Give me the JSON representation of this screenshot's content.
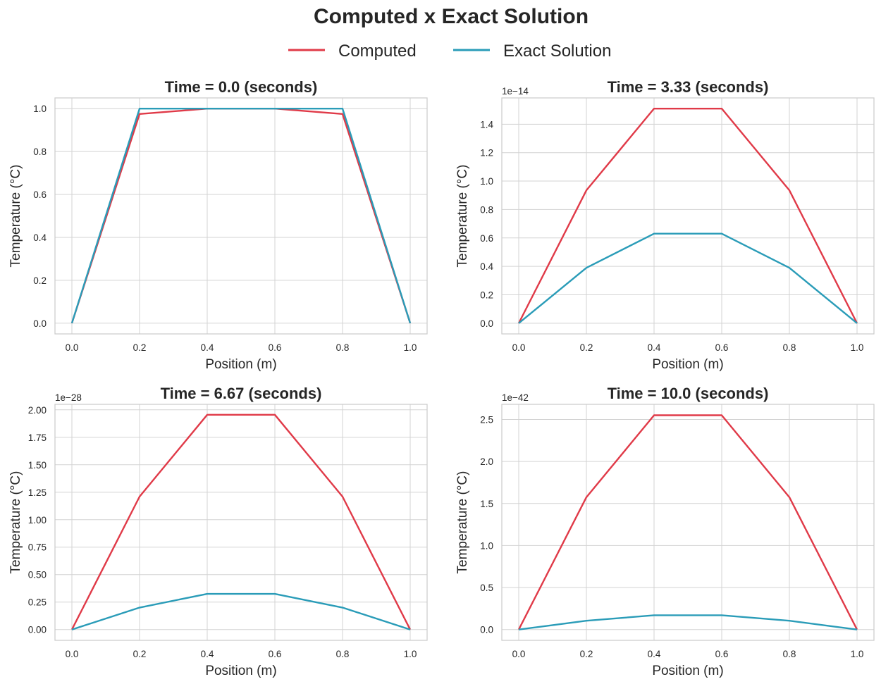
{
  "figure": {
    "title": "Computed x Exact Solution",
    "legend": [
      {
        "name": "Computed",
        "color": "#e03a48"
      },
      {
        "name": "Exact Solution",
        "color": "#2a9cb8"
      }
    ]
  },
  "chart_data": [
    {
      "type": "line",
      "title": "Time = 0.0 (seconds)",
      "xlabel": "Position (m)",
      "ylabel": "Temperature (°C)",
      "offset_text": "",
      "x": [
        0.0,
        0.2,
        0.4,
        0.6,
        0.8,
        1.0
      ],
      "xticks": [
        0.0,
        0.2,
        0.4,
        0.6,
        0.8,
        1.0
      ],
      "xtick_labels": [
        "0.0",
        "0.2",
        "0.4",
        "0.6",
        "0.8",
        "1.0"
      ],
      "xlim": [
        -0.05,
        1.05
      ],
      "yticks": [
        0.0,
        0.2,
        0.4,
        0.6,
        0.8,
        1.0
      ],
      "ytick_labels": [
        "0.0",
        "0.2",
        "0.4",
        "0.6",
        "0.8",
        "1.0"
      ],
      "ylim": [
        -0.05,
        1.05
      ],
      "grid": true,
      "series": [
        {
          "name": "Computed",
          "color": "#e03a48",
          "values": [
            0.0,
            0.975,
            1.0,
            1.0,
            0.975,
            0.0
          ]
        },
        {
          "name": "Exact Solution",
          "color": "#2a9cb8",
          "values": [
            0.0,
            1.0,
            1.0,
            1.0,
            1.0,
            0.0
          ]
        }
      ]
    },
    {
      "type": "line",
      "title": "Time = 3.33 (seconds)",
      "xlabel": "Position (m)",
      "ylabel": "Temperature (°C)",
      "offset_text": "1e−14",
      "x": [
        0.0,
        0.2,
        0.4,
        0.6,
        0.8,
        1.0
      ],
      "xticks": [
        0.0,
        0.2,
        0.4,
        0.6,
        0.8,
        1.0
      ],
      "xtick_labels": [
        "0.0",
        "0.2",
        "0.4",
        "0.6",
        "0.8",
        "1.0"
      ],
      "xlim": [
        -0.05,
        1.05
      ],
      "yticks": [
        0.0,
        0.2,
        0.4,
        0.6,
        0.8,
        1.0,
        1.2,
        1.4
      ],
      "ytick_labels": [
        "0.0",
        "0.2",
        "0.4",
        "0.6",
        "0.8",
        "1.0",
        "1.2",
        "1.4"
      ],
      "ylim": [
        -0.075,
        1.585
      ],
      "grid": true,
      "series": [
        {
          "name": "Computed",
          "color": "#e03a48",
          "values": [
            0.0,
            0.935,
            1.51,
            1.51,
            0.935,
            0.0
          ]
        },
        {
          "name": "Exact Solution",
          "color": "#2a9cb8",
          "values": [
            0.0,
            0.39,
            0.63,
            0.63,
            0.39,
            0.0
          ]
        }
      ]
    },
    {
      "type": "line",
      "title": "Time = 6.67 (seconds)",
      "xlabel": "Position (m)",
      "ylabel": "Temperature (°C)",
      "offset_text": "1e−28",
      "x": [
        0.0,
        0.2,
        0.4,
        0.6,
        0.8,
        1.0
      ],
      "xticks": [
        0.0,
        0.2,
        0.4,
        0.6,
        0.8,
        1.0
      ],
      "xtick_labels": [
        "0.0",
        "0.2",
        "0.4",
        "0.6",
        "0.8",
        "1.0"
      ],
      "xlim": [
        -0.05,
        1.05
      ],
      "yticks": [
        0.0,
        0.25,
        0.5,
        0.75,
        1.0,
        1.25,
        1.5,
        1.75,
        2.0
      ],
      "ytick_labels": [
        "0.00",
        "0.25",
        "0.50",
        "0.75",
        "1.00",
        "1.25",
        "1.50",
        "1.75",
        "2.00"
      ],
      "ylim": [
        -0.098,
        2.05
      ],
      "grid": true,
      "series": [
        {
          "name": "Computed",
          "color": "#e03a48",
          "values": [
            0.0,
            1.21,
            1.955,
            1.955,
            1.21,
            0.0
          ]
        },
        {
          "name": "Exact Solution",
          "color": "#2a9cb8",
          "values": [
            0.0,
            0.2,
            0.325,
            0.325,
            0.2,
            0.0
          ]
        }
      ]
    },
    {
      "type": "line",
      "title": "Time = 10.0 (seconds)",
      "xlabel": "Position (m)",
      "ylabel": "Temperature (°C)",
      "offset_text": "1e−42",
      "x": [
        0.0,
        0.2,
        0.4,
        0.6,
        0.8,
        1.0
      ],
      "xticks": [
        0.0,
        0.2,
        0.4,
        0.6,
        0.8,
        1.0
      ],
      "xtick_labels": [
        "0.0",
        "0.2",
        "0.4",
        "0.6",
        "0.8",
        "1.0"
      ],
      "xlim": [
        -0.05,
        1.05
      ],
      "yticks": [
        0.0,
        0.5,
        1.0,
        1.5,
        2.0,
        2.5
      ],
      "ytick_labels": [
        "0.0",
        "0.5",
        "1.0",
        "1.5",
        "2.0",
        "2.5"
      ],
      "ylim": [
        -0.128,
        2.68
      ],
      "grid": true,
      "series": [
        {
          "name": "Computed",
          "color": "#e03a48",
          "values": [
            0.0,
            1.575,
            2.55,
            2.55,
            1.575,
            0.0
          ]
        },
        {
          "name": "Exact Solution",
          "color": "#2a9cb8",
          "values": [
            0.0,
            0.105,
            0.17,
            0.17,
            0.105,
            0.0
          ]
        }
      ]
    }
  ]
}
